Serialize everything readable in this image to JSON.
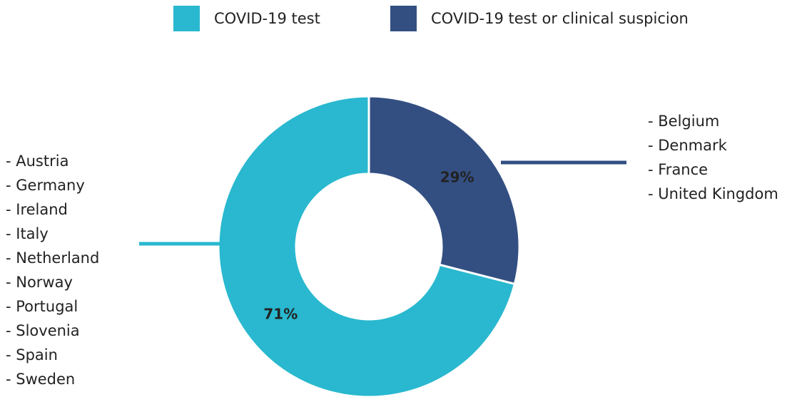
{
  "chart_data": {
    "type": "donut",
    "categories": [
      "COVID-19 test",
      "COVID-19 test or clinical suspicion"
    ],
    "values": [
      71,
      29
    ],
    "value_labels": [
      "71%",
      "29%"
    ],
    "colors": [
      "#29b8cf",
      "#334f82"
    ],
    "annotations": [
      [
        "- Austria",
        "- Germany",
        "- Ireland",
        "- Italy",
        "- Netherland",
        "- Norway",
        "- Portugal",
        "- Slovenia",
        "- Spain",
        "- Sweden"
      ],
      [
        "- Belgium",
        "- Denmark",
        "- France",
        "- United Kingdom"
      ]
    ]
  }
}
